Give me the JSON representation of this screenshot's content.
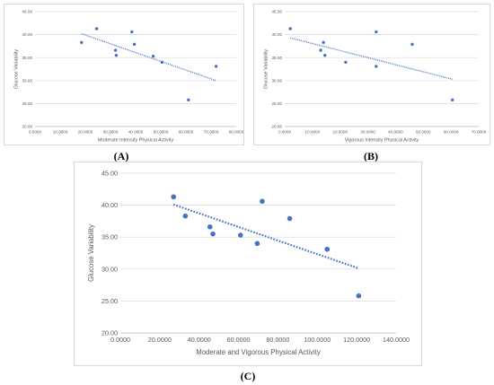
{
  "captions": {
    "a": "(A)",
    "b": "(B)",
    "c": "(C)"
  },
  "colors": {
    "point": "#4472c4",
    "trend": "#4472c4",
    "grid": "#d9d9d9",
    "text": "#595959"
  },
  "chart_data": [
    {
      "id": "a",
      "type": "scatter",
      "title": "",
      "xlabel": "Moderate Intensity Physical Activity",
      "ylabel": "Glucose Variability",
      "xlim": [
        0,
        80
      ],
      "ylim": [
        20,
        45
      ],
      "x_ticks": [
        "0.0000",
        "10.0000",
        "20.0000",
        "30.0000",
        "40.0000",
        "50.0000",
        "60.0000",
        "70.0000",
        "80.0000"
      ],
      "y_ticks": [
        "20.00",
        "25.00",
        "30.00",
        "35.00",
        "40.00",
        "45.00"
      ],
      "grid": "horizontal",
      "trendline": "linear, dotted",
      "points": [
        {
          "x": 18.5,
          "y": 38.3
        },
        {
          "x": 24.5,
          "y": 41.3
        },
        {
          "x": 32.0,
          "y": 36.6
        },
        {
          "x": 32.3,
          "y": 35.5
        },
        {
          "x": 38.5,
          "y": 40.6
        },
        {
          "x": 39.5,
          "y": 37.9
        },
        {
          "x": 47.0,
          "y": 35.3
        },
        {
          "x": 50.5,
          "y": 34.0
        },
        {
          "x": 61.0,
          "y": 25.8
        },
        {
          "x": 72.0,
          "y": 33.1
        }
      ],
      "trend": [
        {
          "x": 18.5,
          "y": 40.2
        },
        {
          "x": 72.0,
          "y": 30.0
        }
      ]
    },
    {
      "id": "b",
      "type": "scatter",
      "title": "",
      "xlabel": "Vigorous Intensity Physical Activity",
      "ylabel": "Glucose Variability",
      "xlim": [
        0,
        70
      ],
      "ylim": [
        20,
        45
      ],
      "x_ticks": [
        "0.0000",
        "10.0000",
        "20.0000",
        "30.0000",
        "40.0000",
        "50.0000",
        "60.0000",
        "70.0000"
      ],
      "y_ticks": [
        "20.00",
        "25.00",
        "30.00",
        "35.00",
        "40.00",
        "45.00"
      ],
      "grid": "horizontal",
      "trendline": "linear, dotted",
      "points": [
        {
          "x": 2.0,
          "y": 41.3
        },
        {
          "x": 13.0,
          "y": 36.6
        },
        {
          "x": 14.0,
          "y": 38.3
        },
        {
          "x": 14.5,
          "y": 35.5
        },
        {
          "x": 22.0,
          "y": 34.0
        },
        {
          "x": 33.0,
          "y": 40.6
        },
        {
          "x": 33.0,
          "y": 33.1
        },
        {
          "x": 46.0,
          "y": 37.9
        },
        {
          "x": 60.5,
          "y": 25.8
        }
      ],
      "trend": [
        {
          "x": 2.0,
          "y": 39.3
        },
        {
          "x": 60.5,
          "y": 30.3
        }
      ]
    },
    {
      "id": "c",
      "type": "scatter",
      "title": "",
      "xlabel": "Moderate and Vigorous Physical Activity",
      "ylabel": "Glucose Variability",
      "xlim": [
        0,
        140
      ],
      "ylim": [
        20,
        45
      ],
      "x_ticks": [
        "0.0000",
        "20.0000",
        "40.0000",
        "60.0000",
        "80.0000",
        "100.0000",
        "120.0000",
        "140.0000"
      ],
      "y_ticks": [
        "20.00",
        "25.00",
        "30.00",
        "35.00",
        "40.00",
        "45.00"
      ],
      "grid": "horizontal",
      "trendline": "linear, dotted",
      "points": [
        {
          "x": 27.0,
          "y": 41.3
        },
        {
          "x": 33.0,
          "y": 38.3
        },
        {
          "x": 45.5,
          "y": 36.6
        },
        {
          "x": 47.0,
          "y": 35.5
        },
        {
          "x": 61.0,
          "y": 35.3
        },
        {
          "x": 69.5,
          "y": 34.0
        },
        {
          "x": 72.0,
          "y": 40.6
        },
        {
          "x": 86.0,
          "y": 37.9
        },
        {
          "x": 105.0,
          "y": 33.1
        },
        {
          "x": 121.0,
          "y": 25.8
        }
      ],
      "trend": [
        {
          "x": 27.0,
          "y": 40.1
        },
        {
          "x": 121.0,
          "y": 30.1
        }
      ]
    }
  ]
}
